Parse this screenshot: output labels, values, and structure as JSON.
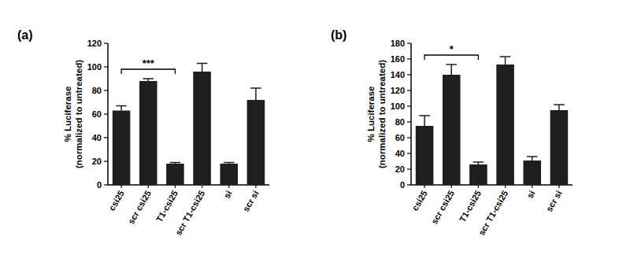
{
  "chart_data": [
    {
      "type": "bar",
      "title": "(a)",
      "ylabel": [
        "% Luciferase",
        "(normalized to untreated)"
      ],
      "categories": [
        "csi25",
        "scr csi25",
        "T1-csi25",
        "scr T1-csi25",
        "si",
        "scr si"
      ],
      "values": [
        63,
        88,
        18,
        96,
        18,
        72
      ],
      "errors": [
        4,
        2,
        1,
        7,
        1,
        10
      ],
      "color": "#1e1e1e",
      "ylim": [
        0,
        120
      ],
      "yticks": [
        0,
        20,
        40,
        60,
        80,
        100,
        120
      ],
      "annotations": [
        {
          "text": "***",
          "from": "csi25",
          "to": "T1-csi25"
        }
      ]
    },
    {
      "type": "bar",
      "title": "(b)",
      "ylabel": [
        "% Luciferase",
        "(normalized to untreated)"
      ],
      "categories": [
        "csi25",
        "scr csi25",
        "T1-csi25",
        "scr T1-csi25",
        "si",
        "scr si"
      ],
      "values": [
        75,
        140,
        26,
        153,
        31,
        95
      ],
      "errors": [
        13,
        13,
        3,
        10,
        5,
        7
      ],
      "color": "#1e1e1e",
      "ylim": [
        0,
        180
      ],
      "yticks": [
        0,
        20,
        40,
        60,
        80,
        100,
        120,
        140,
        160,
        180
      ],
      "annotations": [
        {
          "text": "*",
          "from": "csi25",
          "to": "T1-csi25"
        }
      ]
    }
  ]
}
